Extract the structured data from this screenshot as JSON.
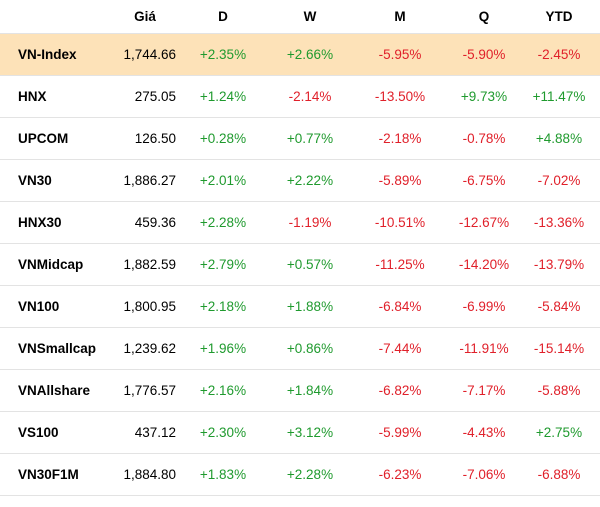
{
  "header": {
    "name": "",
    "price": "Giá",
    "d": "D",
    "w": "W",
    "m": "M",
    "q": "Q",
    "ytd": "YTD"
  },
  "colors": {
    "positive": "#1f9a2e",
    "negative": "#e0202a",
    "highlight_row": "#fde2b8"
  },
  "rows": [
    {
      "name": "VN-Index",
      "price": "1,744.66",
      "d": "+2.35%",
      "w": "+2.66%",
      "m": "-5.95%",
      "q": "-5.90%",
      "ytd": "-2.45%",
      "highlighted": true
    },
    {
      "name": "HNX",
      "price": "275.05",
      "d": "+1.24%",
      "w": "-2.14%",
      "m": "-13.50%",
      "q": "+9.73%",
      "ytd": "+11.47%"
    },
    {
      "name": "UPCOM",
      "price": "126.50",
      "d": "+0.28%",
      "w": "+0.77%",
      "m": "-2.18%",
      "q": "-0.78%",
      "ytd": "+4.88%"
    },
    {
      "name": "VN30",
      "price": "1,886.27",
      "d": "+2.01%",
      "w": "+2.22%",
      "m": "-5.89%",
      "q": "-6.75%",
      "ytd": "-7.02%"
    },
    {
      "name": "HNX30",
      "price": "459.36",
      "d": "+2.28%",
      "w": "-1.19%",
      "m": "-10.51%",
      "q": "-12.67%",
      "ytd": "-13.36%"
    },
    {
      "name": "VNMidcap",
      "price": "1,882.59",
      "d": "+2.79%",
      "w": "+0.57%",
      "m": "-11.25%",
      "q": "-14.20%",
      "ytd": "-13.79%"
    },
    {
      "name": "VN100",
      "price": "1,800.95",
      "d": "+2.18%",
      "w": "+1.88%",
      "m": "-6.84%",
      "q": "-6.99%",
      "ytd": "-5.84%"
    },
    {
      "name": "VNSmallcap",
      "price": "1,239.62",
      "d": "+1.96%",
      "w": "+0.86%",
      "m": "-7.44%",
      "q": "-11.91%",
      "ytd": "-15.14%"
    },
    {
      "name": "VNAllshare",
      "price": "1,776.57",
      "d": "+2.16%",
      "w": "+1.84%",
      "m": "-6.82%",
      "q": "-7.17%",
      "ytd": "-5.88%"
    },
    {
      "name": "VS100",
      "price": "437.12",
      "d": "+2.30%",
      "w": "+3.12%",
      "m": "-5.99%",
      "q": "-4.43%",
      "ytd": "+2.75%"
    },
    {
      "name": "VN30F1M",
      "price": "1,884.80",
      "d": "+1.83%",
      "w": "+2.28%",
      "m": "-6.23%",
      "q": "-7.06%",
      "ytd": "-6.88%"
    }
  ]
}
